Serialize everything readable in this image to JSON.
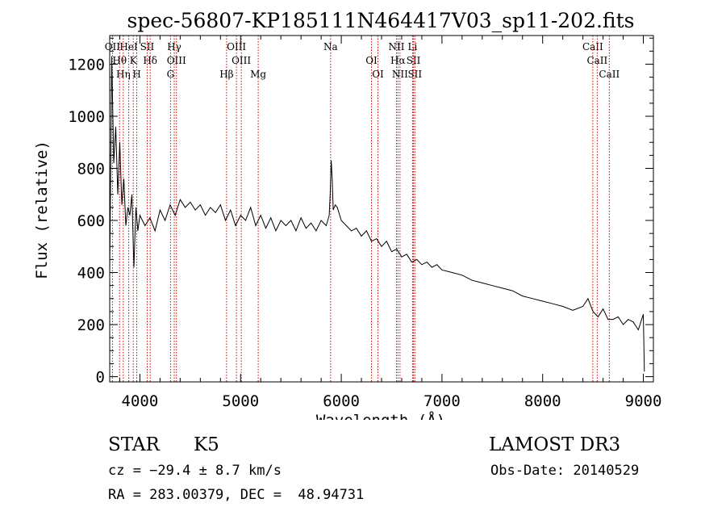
{
  "chart_data": {
    "type": "line",
    "title": "spec-56807-KP185111N464417V03_sp11-202.fits",
    "xlabel": "Wavelength (Å)",
    "ylabel": "Flux (relative)",
    "xlim": [
      3700,
      9100
    ],
    "ylim": [
      -20,
      1310
    ],
    "x_ticks": [
      4000,
      5000,
      6000,
      7000,
      8000,
      9000
    ],
    "x_tick_labels": [
      "4000",
      "5000",
      "6000",
      "7000",
      "8000",
      "9000"
    ],
    "y_ticks": [
      0,
      200,
      400,
      600,
      800,
      1000,
      1200
    ],
    "y_tick_labels": [
      "0",
      "200",
      "400",
      "600",
      "800",
      "1000",
      "1200"
    ],
    "grid": false,
    "series": [
      {
        "name": "spectrum",
        "color": "#000000",
        "x": [
          3700,
          3720,
          3740,
          3760,
          3780,
          3800,
          3820,
          3840,
          3860,
          3880,
          3900,
          3920,
          3940,
          3960,
          3980,
          4000,
          4050,
          4100,
          4150,
          4200,
          4250,
          4300,
          4350,
          4400,
          4450,
          4500,
          4550,
          4600,
          4650,
          4700,
          4750,
          4800,
          4850,
          4900,
          4950,
          5000,
          5050,
          5100,
          5150,
          5200,
          5250,
          5300,
          5350,
          5400,
          5450,
          5500,
          5550,
          5600,
          5650,
          5700,
          5750,
          5800,
          5850,
          5880,
          5890,
          5900,
          5910,
          5920,
          5940,
          5960,
          6000,
          6050,
          6100,
          6150,
          6200,
          6250,
          6300,
          6350,
          6400,
          6450,
          6500,
          6550,
          6600,
          6650,
          6700,
          6750,
          6800,
          6850,
          6900,
          6950,
          7000,
          7100,
          7200,
          7300,
          7400,
          7500,
          7600,
          7700,
          7800,
          7900,
          8000,
          8100,
          8200,
          8300,
          8400,
          8450,
          8500,
          8550,
          8600,
          8650,
          8700,
          8750,
          8800,
          8850,
          8900,
          8950,
          9000,
          9010
        ],
        "y": [
          400,
          1230,
          820,
          960,
          700,
          900,
          660,
          760,
          580,
          650,
          620,
          700,
          420,
          650,
          560,
          620,
          580,
          610,
          560,
          640,
          600,
          660,
          620,
          680,
          650,
          670,
          640,
          660,
          620,
          650,
          630,
          660,
          600,
          640,
          580,
          620,
          600,
          650,
          580,
          620,
          570,
          610,
          560,
          600,
          580,
          600,
          560,
          610,
          570,
          590,
          560,
          600,
          580,
          620,
          700,
          830,
          760,
          640,
          660,
          650,
          600,
          580,
          560,
          570,
          540,
          560,
          520,
          530,
          500,
          520,
          480,
          490,
          460,
          470,
          440,
          450,
          430,
          440,
          420,
          430,
          410,
          400,
          390,
          370,
          360,
          350,
          340,
          330,
          310,
          300,
          290,
          280,
          270,
          255,
          270,
          300,
          250,
          230,
          260,
          220,
          220,
          230,
          200,
          220,
          210,
          180,
          240,
          20
        ]
      }
    ],
    "line_markers": [
      {
        "label": "OII",
        "x": 3727
      },
      {
        "label": "Hθ",
        "x": 3798
      },
      {
        "label": "Hη",
        "x": 3835
      },
      {
        "label": "HeI",
        "x": 3889
      },
      {
        "label": "K",
        "x": 3934
      },
      {
        "label": "H",
        "x": 3969
      },
      {
        "label": "SII",
        "x": 4072
      },
      {
        "label": "Hδ",
        "x": 4102
      },
      {
        "label": "G",
        "x": 4304
      },
      {
        "label": "Hγ",
        "x": 4341
      },
      {
        "label": "OIII",
        "x": 4363
      },
      {
        "label": "Hβ",
        "x": 4861
      },
      {
        "label": "OIII",
        "x": 4959
      },
      {
        "label": "OIII",
        "x": 5007
      },
      {
        "label": "Mg",
        "x": 5175
      },
      {
        "label": "Na",
        "x": 5894
      },
      {
        "label": "OI",
        "x": 6300
      },
      {
        "label": "OI",
        "x": 6364
      },
      {
        "label": "NII",
        "x": 6548
      },
      {
        "label": "Hα",
        "x": 6563
      },
      {
        "label": "NII",
        "x": 6583
      },
      {
        "label": "Li",
        "x": 6708
      },
      {
        "label": "SII",
        "x": 6717
      },
      {
        "label": "SII",
        "x": 6731
      },
      {
        "label": "CaII",
        "x": 8498
      },
      {
        "label": "CaII",
        "x": 8542
      },
      {
        "label": "CaII",
        "x": 8662
      }
    ],
    "marker_color": "#cc0000"
  },
  "info": {
    "class_label": "STAR",
    "subclass_label": "K5",
    "survey_label": "LAMOST DR3",
    "velocity_text": "cz = −29.4 ± 8.7 km/s",
    "obs_date_text": "Obs-Date: 20140529",
    "coords_text": "RA = 283.00379, DEC =  48.94731"
  }
}
